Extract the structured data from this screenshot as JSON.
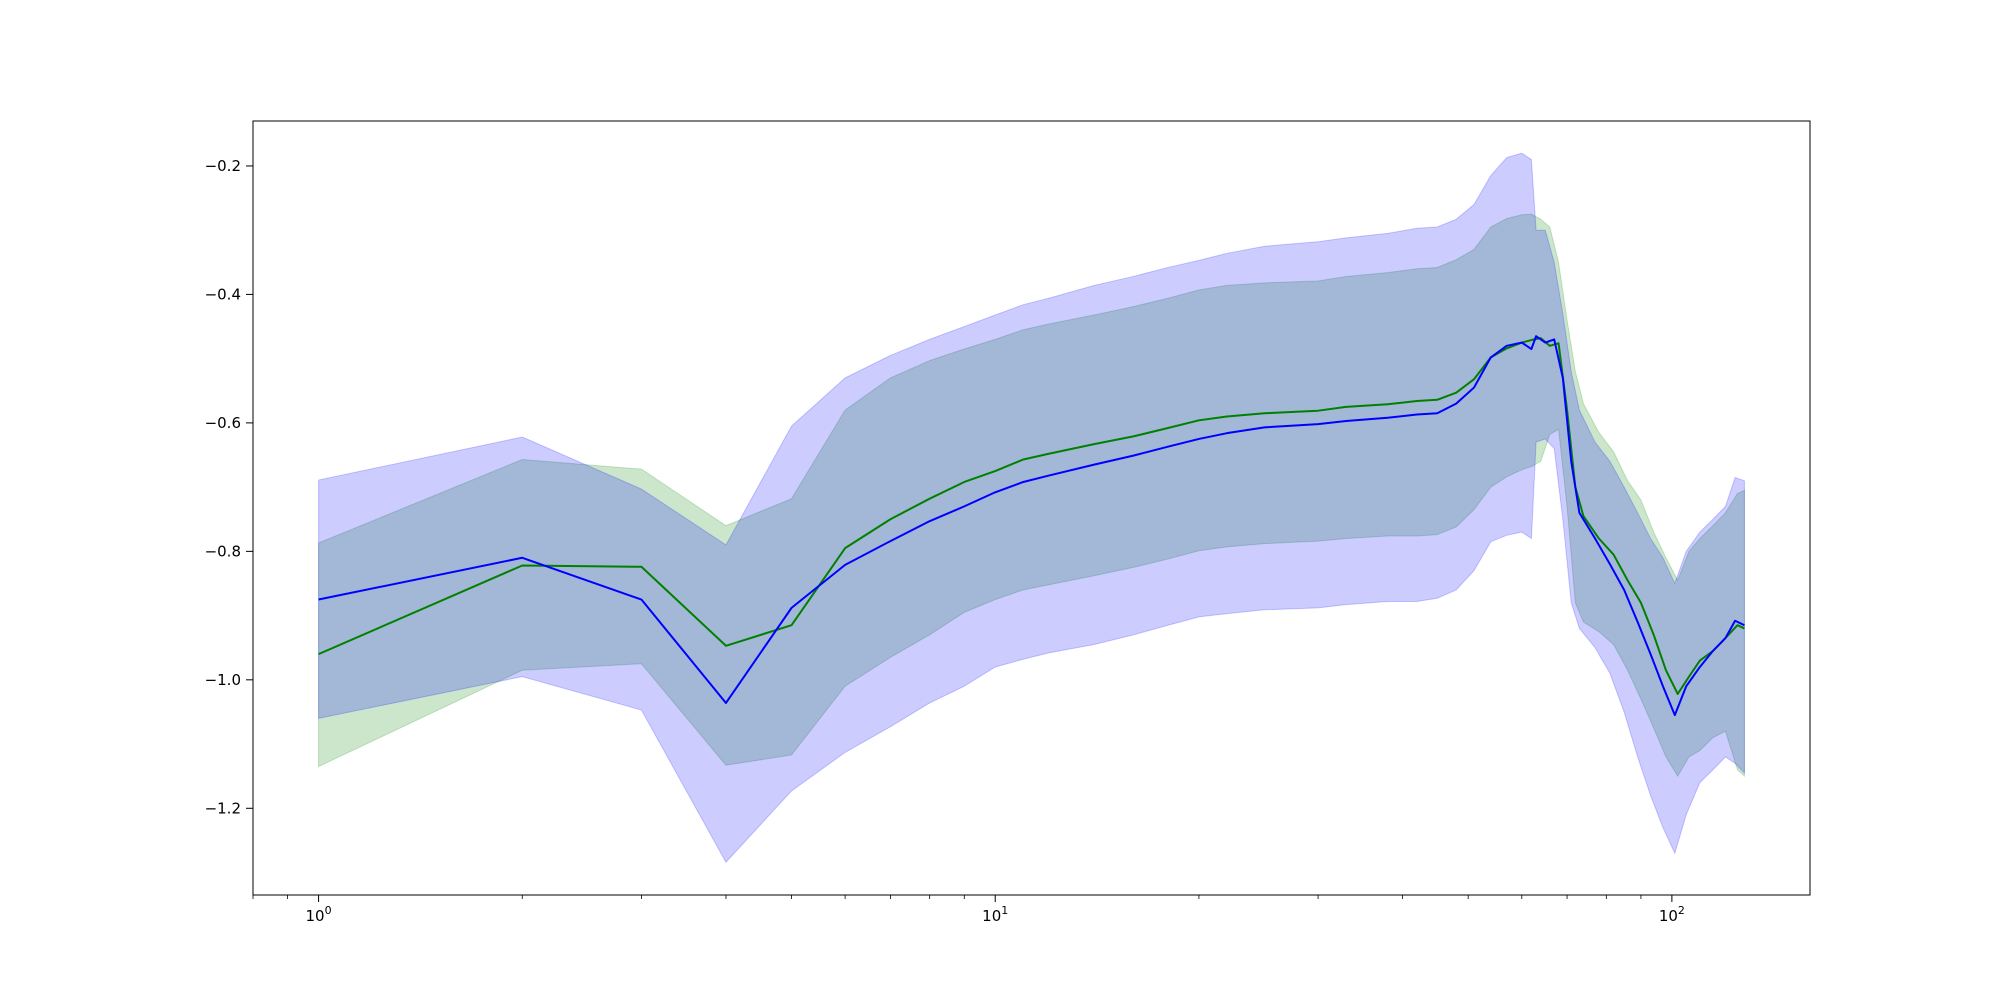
{
  "chart_data": {
    "type": "line",
    "title": "",
    "xlabel": "",
    "ylabel": "",
    "x_scale": "log",
    "xlim": [
      0.8,
      160
    ],
    "ylim": [
      -1.335,
      -0.13
    ],
    "grid": false,
    "legend": "none",
    "x_ticks": [
      {
        "value": 1,
        "base": "10",
        "exp": "0"
      },
      {
        "value": 10,
        "base": "10",
        "exp": "1"
      },
      {
        "value": 100,
        "base": "10",
        "exp": "2"
      }
    ],
    "y_ticks": [
      {
        "value": -0.2,
        "label": "−0.2"
      },
      {
        "value": -0.4,
        "label": "−0.4"
      },
      {
        "value": -0.6,
        "label": "−0.6"
      },
      {
        "value": -0.8,
        "label": "−0.8"
      },
      {
        "value": -1.0,
        "label": "−1.0"
      },
      {
        "value": -1.2,
        "label": "−1.2"
      }
    ],
    "series": [
      {
        "color": "#008000",
        "band_color": "#008000",
        "band_opacity": 0.2,
        "points": [
          [
            1,
            -0.96,
            -1.135,
            -0.787
          ],
          [
            2,
            -0.822,
            -0.985,
            -0.657
          ],
          [
            3,
            -0.824,
            -0.975,
            -0.672
          ],
          [
            4,
            -0.947,
            -1.133,
            -0.76
          ],
          [
            5,
            -0.915,
            -1.117,
            -0.718
          ],
          [
            6,
            -0.795,
            -1.01,
            -0.58
          ],
          [
            7,
            -0.75,
            -0.965,
            -0.53
          ],
          [
            8,
            -0.718,
            -0.93,
            -0.503
          ],
          [
            9,
            -0.692,
            -0.895,
            -0.485
          ],
          [
            10,
            -0.675,
            -0.875,
            -0.47
          ],
          [
            11,
            -0.657,
            -0.86,
            -0.455
          ],
          [
            12,
            -0.648,
            -0.852,
            -0.446
          ],
          [
            14,
            -0.633,
            -0.838,
            -0.432
          ],
          [
            16,
            -0.621,
            -0.825,
            -0.419
          ],
          [
            18,
            -0.608,
            -0.812,
            -0.406
          ],
          [
            20,
            -0.596,
            -0.799,
            -0.393
          ],
          [
            22,
            -0.59,
            -0.793,
            -0.386
          ],
          [
            25,
            -0.585,
            -0.788,
            -0.382
          ],
          [
            30,
            -0.581,
            -0.784,
            -0.379
          ],
          [
            33,
            -0.575,
            -0.78,
            -0.372
          ],
          [
            38,
            -0.571,
            -0.776,
            -0.366
          ],
          [
            42,
            -0.566,
            -0.776,
            -0.36
          ],
          [
            45,
            -0.564,
            -0.774,
            -0.358
          ],
          [
            48,
            -0.553,
            -0.762,
            -0.346
          ],
          [
            51,
            -0.532,
            -0.735,
            -0.33
          ],
          [
            54,
            -0.498,
            -0.7,
            -0.295
          ],
          [
            57,
            -0.484,
            -0.684,
            -0.282
          ],
          [
            60,
            -0.475,
            -0.673,
            -0.276
          ],
          [
            62,
            -0.471,
            -0.668,
            -0.275
          ],
          [
            64,
            -0.468,
            -0.66,
            -0.283
          ],
          [
            66,
            -0.48,
            -0.618,
            -0.295
          ],
          [
            68,
            -0.476,
            -0.61,
            -0.35
          ],
          [
            70,
            -0.58,
            -0.73,
            -0.44
          ],
          [
            72,
            -0.7,
            -0.88,
            -0.52
          ],
          [
            74,
            -0.745,
            -0.91,
            -0.57
          ],
          [
            78,
            -0.78,
            -0.925,
            -0.615
          ],
          [
            82,
            -0.805,
            -0.945,
            -0.645
          ],
          [
            86,
            -0.845,
            -0.985,
            -0.69
          ],
          [
            90,
            -0.88,
            -1.03,
            -0.72
          ],
          [
            94,
            -0.93,
            -1.075,
            -0.77
          ],
          [
            98,
            -0.985,
            -1.12,
            -0.81
          ],
          [
            102,
            -1.022,
            -1.15,
            -0.845
          ],
          [
            106,
            -0.995,
            -1.12,
            -0.8
          ],
          [
            110,
            -0.97,
            -1.11,
            -0.78
          ],
          [
            115,
            -0.955,
            -1.09,
            -0.76
          ],
          [
            120,
            -0.935,
            -1.08,
            -0.74
          ],
          [
            125,
            -0.915,
            -1.14,
            -0.71
          ],
          [
            128,
            -0.92,
            -1.15,
            -0.705
          ]
        ]
      },
      {
        "color": "#0000ff",
        "band_color": "#0000ff",
        "band_opacity": 0.2,
        "points": [
          [
            1,
            -0.875,
            -1.06,
            -0.689
          ],
          [
            2,
            -0.81,
            -0.995,
            -0.622
          ],
          [
            3,
            -0.875,
            -1.047,
            -0.703
          ],
          [
            4,
            -1.036,
            -1.284,
            -0.79
          ],
          [
            5,
            -0.888,
            -1.173,
            -0.605
          ],
          [
            6,
            -0.821,
            -1.113,
            -0.53
          ],
          [
            7,
            -0.784,
            -1.073,
            -0.495
          ],
          [
            8,
            -0.753,
            -1.036,
            -0.47
          ],
          [
            9,
            -0.73,
            -1.01,
            -0.45
          ],
          [
            10,
            -0.708,
            -0.98,
            -0.432
          ],
          [
            11,
            -0.692,
            -0.968,
            -0.416
          ],
          [
            12,
            -0.682,
            -0.958,
            -0.406
          ],
          [
            14,
            -0.665,
            -0.945,
            -0.386
          ],
          [
            16,
            -0.651,
            -0.93,
            -0.372
          ],
          [
            18,
            -0.637,
            -0.915,
            -0.358
          ],
          [
            20,
            -0.625,
            -0.902,
            -0.347
          ],
          [
            22,
            -0.616,
            -0.897,
            -0.336
          ],
          [
            25,
            -0.607,
            -0.891,
            -0.325
          ],
          [
            30,
            -0.602,
            -0.888,
            -0.318
          ],
          [
            33,
            -0.597,
            -0.883,
            -0.312
          ],
          [
            38,
            -0.592,
            -0.878,
            -0.305
          ],
          [
            42,
            -0.587,
            -0.878,
            -0.297
          ],
          [
            45,
            -0.585,
            -0.873,
            -0.295
          ],
          [
            48,
            -0.57,
            -0.86,
            -0.283
          ],
          [
            51,
            -0.545,
            -0.83,
            -0.26
          ],
          [
            54,
            -0.498,
            -0.785,
            -0.215
          ],
          [
            57,
            -0.48,
            -0.775,
            -0.187
          ],
          [
            60,
            -0.475,
            -0.77,
            -0.18
          ],
          [
            62,
            -0.485,
            -0.78,
            -0.19
          ],
          [
            63,
            -0.465,
            -0.63,
            -0.3
          ],
          [
            65,
            -0.475,
            -0.625,
            -0.3
          ],
          [
            67,
            -0.47,
            -0.64,
            -0.35
          ],
          [
            69,
            -0.53,
            -0.75,
            -0.43
          ],
          [
            71,
            -0.66,
            -0.88,
            -0.52
          ],
          [
            73,
            -0.74,
            -0.92,
            -0.58
          ],
          [
            77,
            -0.78,
            -0.95,
            -0.63
          ],
          [
            81,
            -0.82,
            -0.99,
            -0.66
          ],
          [
            85,
            -0.86,
            -1.05,
            -0.7
          ],
          [
            89,
            -0.91,
            -1.12,
            -0.74
          ],
          [
            93,
            -0.96,
            -1.18,
            -0.78
          ],
          [
            97,
            -1.01,
            -1.23,
            -0.81
          ],
          [
            101,
            -1.055,
            -1.27,
            -0.85
          ],
          [
            105,
            -1.01,
            -1.21,
            -0.8
          ],
          [
            110,
            -0.98,
            -1.16,
            -0.77
          ],
          [
            115,
            -0.955,
            -1.14,
            -0.75
          ],
          [
            120,
            -0.935,
            -1.12,
            -0.73
          ],
          [
            124,
            -0.908,
            -1.13,
            -0.685
          ],
          [
            128,
            -0.915,
            -1.145,
            -0.69
          ]
        ]
      }
    ]
  }
}
